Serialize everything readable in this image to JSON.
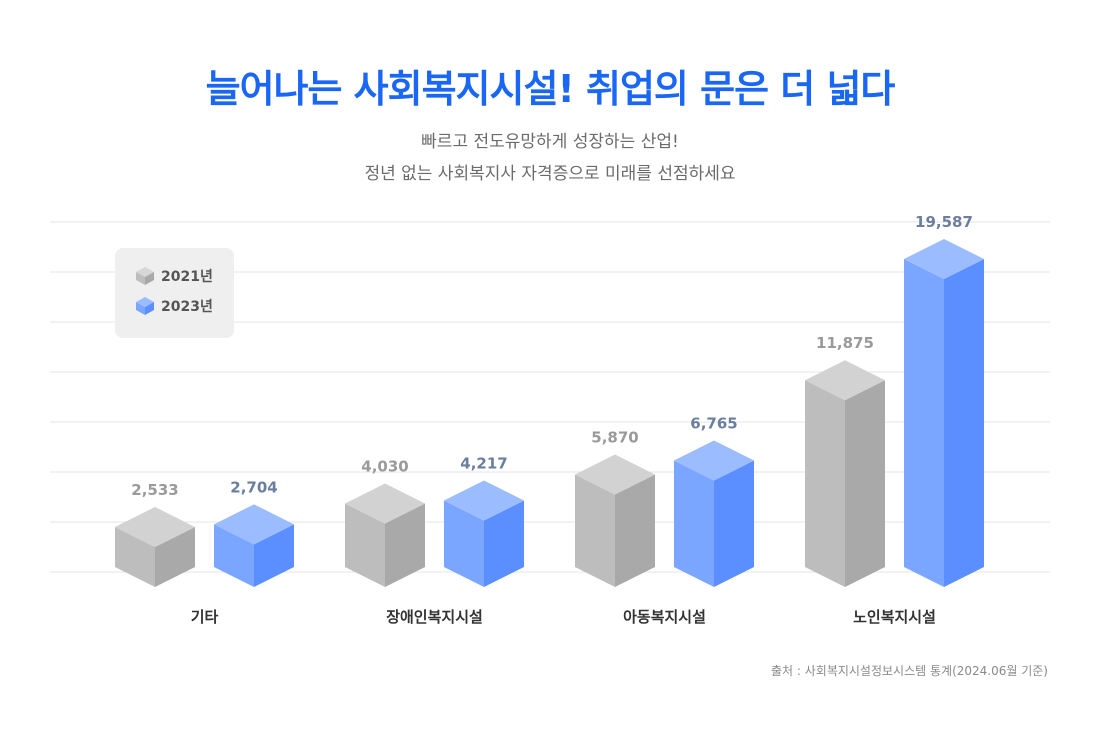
{
  "title": "늘어나는 사회복지시설! 취업의 문은 더 넓다",
  "subtitle_lines": [
    "빠르고 전도유망하게 성장하는 산업!",
    "정년 없는 사회복지사 자격증으로 미래를 선점하세요"
  ],
  "source": "출처 : 사회복지시설정보시스템 통계(2024.06월 기준)",
  "legend": [
    {
      "label": "2021년",
      "color": "#c4c4c4"
    },
    {
      "label": "2023년",
      "color": "#7ba6ff"
    }
  ],
  "chart_data": {
    "type": "bar",
    "title": "늘어나는 사회복지시설! 취업의 문은 더 넓다",
    "categories": [
      "기타",
      "장애인복지시설",
      "아동복지시설",
      "노인복지시설"
    ],
    "series": [
      {
        "name": "2021년",
        "values": [
          2533,
          4030,
          5870,
          11875
        ],
        "labels": [
          "2,533",
          "4,030",
          "5,870",
          "11,875"
        ]
      },
      {
        "name": "2023년",
        "values": [
          2704,
          4217,
          6765,
          19587
        ],
        "labels": [
          "2,704",
          "4,217",
          "6,765",
          "19,587"
        ]
      }
    ],
    "legend_position": "top-left",
    "grid": true,
    "style": "3d-column"
  }
}
